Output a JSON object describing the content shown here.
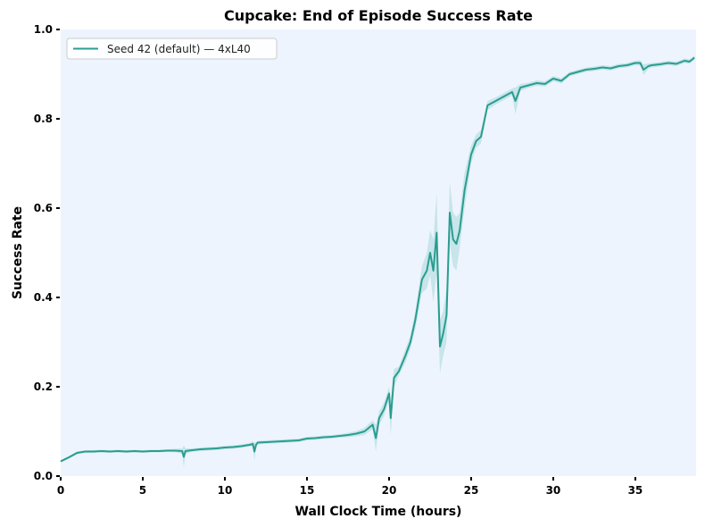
{
  "chart_data": {
    "type": "line",
    "title": "Cupcake: End of Episode Success Rate",
    "xlabel": "Wall Clock Time (hours)",
    "ylabel": "Success Rate",
    "xlim": [
      0,
      38.7
    ],
    "ylim": [
      0.0,
      1.0
    ],
    "xticks": [
      0,
      5,
      10,
      15,
      20,
      25,
      30,
      35
    ],
    "xtick_labels": [
      "0",
      "5",
      "10",
      "15",
      "20",
      "25",
      "30",
      "35"
    ],
    "yticks": [
      0.0,
      0.2,
      0.4,
      0.6,
      0.8,
      1.0
    ],
    "ytick_labels": [
      "0.0",
      "0.2",
      "0.4",
      "0.6",
      "0.8",
      "1.0"
    ],
    "grid": false,
    "legend_position": "upper left",
    "colors": {
      "line": "#2a9d8f",
      "band": "#a8d8dc",
      "plot_background": "#eef4fd",
      "figure_background": "#ffffff"
    },
    "series": [
      {
        "name": "Seed 42 (default) — 4xL40",
        "x": [
          0,
          0.5,
          1,
          1.5,
          2,
          2.5,
          3,
          3.5,
          4,
          4.5,
          5,
          5.5,
          6,
          6.5,
          7,
          7.4,
          7.5,
          7.6,
          8,
          8.5,
          9,
          9.5,
          10,
          10.5,
          11,
          11.5,
          11.7,
          11.8,
          11.9,
          12,
          12.5,
          13,
          13.5,
          14,
          14.5,
          15,
          15.5,
          16,
          16.5,
          17,
          17.5,
          18,
          18.5,
          19,
          19.2,
          19.4,
          19.7,
          20,
          20.1,
          20.3,
          20.6,
          21,
          21.3,
          21.6,
          22,
          22.3,
          22.5,
          22.7,
          22.9,
          23.1,
          23.3,
          23.5,
          23.7,
          23.9,
          24.1,
          24.3,
          24.6,
          25,
          25.3,
          25.6,
          26,
          26.5,
          27,
          27.5,
          27.7,
          28,
          28.5,
          29,
          29.5,
          30,
          30.5,
          31,
          31.5,
          32,
          32.5,
          33,
          33.5,
          34,
          34.5,
          35,
          35.3,
          35.5,
          35.8,
          36,
          36.5,
          37,
          37.5,
          38,
          38.3,
          38.6
        ],
        "values": [
          0.033,
          0.042,
          0.052,
          0.055,
          0.055,
          0.056,
          0.055,
          0.056,
          0.055,
          0.056,
          0.055,
          0.056,
          0.056,
          0.057,
          0.057,
          0.056,
          0.043,
          0.056,
          0.058,
          0.06,
          0.061,
          0.062,
          0.064,
          0.065,
          0.067,
          0.07,
          0.072,
          0.055,
          0.07,
          0.075,
          0.076,
          0.077,
          0.078,
          0.079,
          0.08,
          0.084,
          0.085,
          0.087,
          0.088,
          0.09,
          0.092,
          0.095,
          0.1,
          0.115,
          0.085,
          0.13,
          0.15,
          0.185,
          0.13,
          0.22,
          0.235,
          0.27,
          0.3,
          0.35,
          0.44,
          0.46,
          0.5,
          0.46,
          0.545,
          0.29,
          0.32,
          0.36,
          0.59,
          0.53,
          0.52,
          0.55,
          0.64,
          0.72,
          0.75,
          0.76,
          0.83,
          0.84,
          0.85,
          0.86,
          0.84,
          0.87,
          0.875,
          0.88,
          0.878,
          0.89,
          0.885,
          0.9,
          0.905,
          0.91,
          0.912,
          0.915,
          0.913,
          0.918,
          0.92,
          0.925,
          0.925,
          0.91,
          0.918,
          0.92,
          0.922,
          0.925,
          0.923,
          0.93,
          0.928,
          0.937
        ],
        "band_halfwidth": [
          0.003,
          0.003,
          0.003,
          0.003,
          0.003,
          0.003,
          0.003,
          0.003,
          0.003,
          0.003,
          0.003,
          0.003,
          0.003,
          0.003,
          0.004,
          0.006,
          0.025,
          0.006,
          0.004,
          0.004,
          0.004,
          0.004,
          0.004,
          0.004,
          0.004,
          0.004,
          0.006,
          0.02,
          0.006,
          0.004,
          0.004,
          0.004,
          0.004,
          0.004,
          0.004,
          0.004,
          0.004,
          0.004,
          0.004,
          0.004,
          0.005,
          0.006,
          0.008,
          0.01,
          0.03,
          0.015,
          0.015,
          0.015,
          0.04,
          0.02,
          0.01,
          0.015,
          0.015,
          0.02,
          0.03,
          0.04,
          0.05,
          0.07,
          0.09,
          0.06,
          0.05,
          0.06,
          0.07,
          0.06,
          0.06,
          0.04,
          0.04,
          0.02,
          0.015,
          0.015,
          0.01,
          0.008,
          0.008,
          0.008,
          0.03,
          0.008,
          0.006,
          0.006,
          0.006,
          0.006,
          0.006,
          0.005,
          0.005,
          0.005,
          0.005,
          0.005,
          0.005,
          0.005,
          0.005,
          0.005,
          0.006,
          0.012,
          0.006,
          0.005,
          0.005,
          0.005,
          0.005,
          0.005,
          0.005,
          0.005
        ]
      }
    ]
  },
  "legend": {
    "items": [
      {
        "label": "Seed 42 (default) — 4xL40",
        "color": "#2a9d8f"
      }
    ]
  }
}
